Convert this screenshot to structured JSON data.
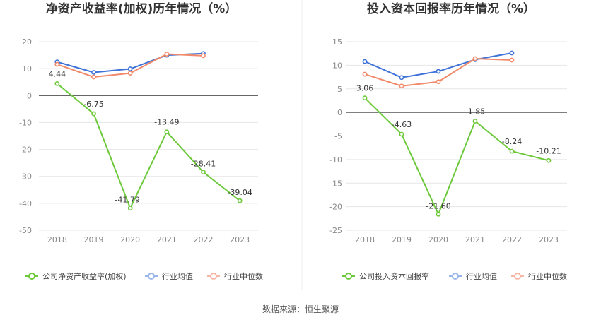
{
  "source_label": "数据来源：恒生聚源",
  "colors": {
    "company": "#6dc93b",
    "industry_avg": "#3f73d8",
    "industry_median": "#f2896a",
    "legend_avg": "#9bb6ea",
    "legend_median": "#f6b8a5",
    "grid": "#e6e6e6",
    "axis": "#333333"
  },
  "chart_data": [
    {
      "type": "line",
      "title": "净资产收益率(加权)历年情况（%）",
      "categories": [
        "2018",
        "2019",
        "2020",
        "2021",
        "2022",
        "2023"
      ],
      "ylim": [
        -50,
        20
      ],
      "yticks": [
        20,
        10,
        0,
        -10,
        -20,
        -30,
        -40,
        -50
      ],
      "grid": true,
      "legend_position": "bottom",
      "series": [
        {
          "name": "公司净资产收益率(加权)",
          "key": "company",
          "values": [
            4.44,
            -6.75,
            -41.79,
            -13.49,
            -28.41,
            -39.04
          ],
          "labels": [
            "4.44",
            "-6.75",
            "-41.79",
            "-13.49",
            "-28.41",
            "-39.04"
          ]
        },
        {
          "name": "行业均值",
          "key": "industry_avg",
          "values": [
            12.5,
            8.6,
            9.9,
            15.0,
            15.6,
            null
          ]
        },
        {
          "name": "行业中位数",
          "key": "industry_median",
          "values": [
            11.6,
            6.9,
            8.3,
            15.4,
            14.8,
            null
          ]
        }
      ]
    },
    {
      "type": "line",
      "title": "投入资本回报率历年情况（%）",
      "categories": [
        "2018",
        "2019",
        "2020",
        "2021",
        "2022",
        "2023"
      ],
      "ylim": [
        -25,
        15
      ],
      "yticks": [
        15,
        10,
        5,
        0,
        -5,
        -10,
        -15,
        -20,
        -25
      ],
      "grid": true,
      "legend_position": "bottom",
      "series": [
        {
          "name": "公司投入资本回报率",
          "key": "company",
          "values": [
            3.06,
            -4.63,
            -21.6,
            -1.85,
            -8.24,
            -10.21
          ],
          "labels": [
            "3.06",
            "-4.63",
            "-21.60",
            "-1.85",
            "-8.24",
            "-10.21"
          ]
        },
        {
          "name": "行业均值",
          "key": "industry_avg",
          "values": [
            10.8,
            7.4,
            8.7,
            11.2,
            12.6,
            null
          ]
        },
        {
          "name": "行业中位数",
          "key": "industry_median",
          "values": [
            8.1,
            5.6,
            6.5,
            11.4,
            11.1,
            null
          ]
        }
      ]
    }
  ]
}
